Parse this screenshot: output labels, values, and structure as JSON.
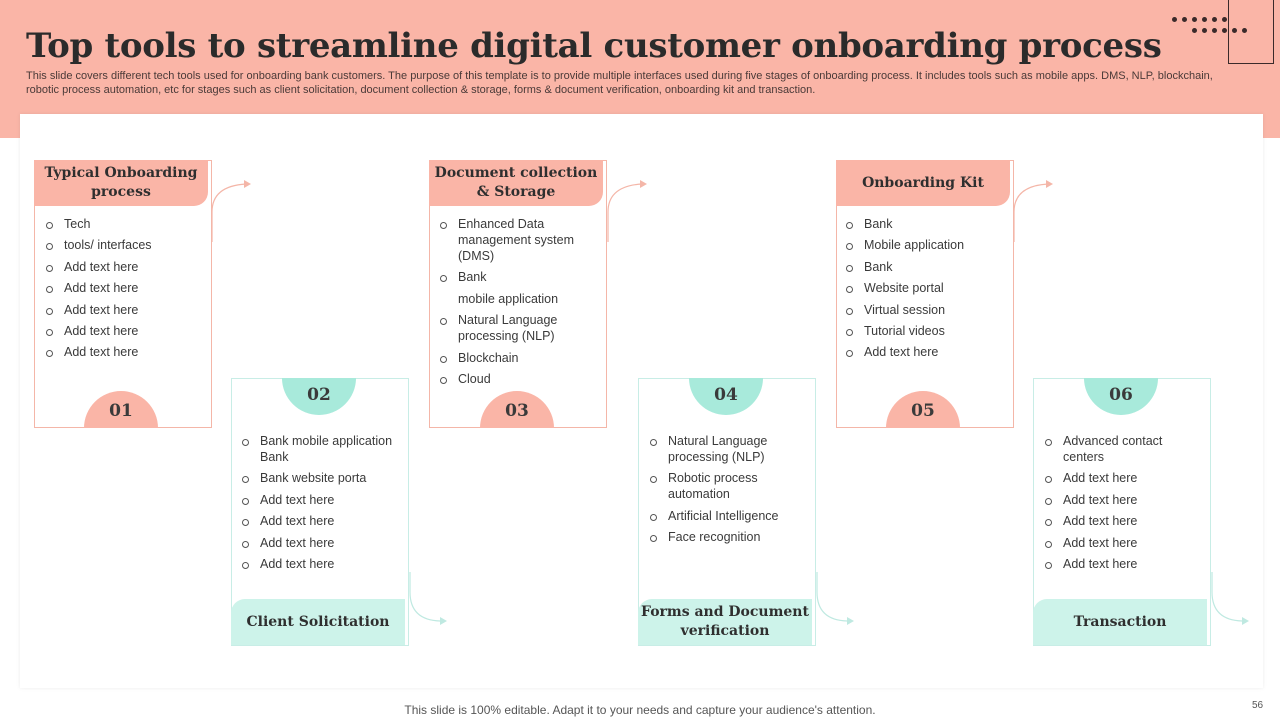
{
  "slide": {
    "title": "Top tools to streamline digital customer onboarding process",
    "subtitle": "This slide covers different tech tools used for onboarding bank customers. The purpose of this template is to provide multiple interfaces used during five stages of onboarding process. It includes tools such as mobile apps. DMS, NLP, blockchain, robotic process automation, etc for stages such as client solicitation, document collection & storage, forms & document verification, onboarding kit and transaction.",
    "footer": "This slide is 100% editable. Adapt it to your needs and capture your audience's attention.",
    "page_number": "56"
  },
  "colors": {
    "salmon": "#fab5a7",
    "mint": "#cdf3ea",
    "mint_circle": "#a8eadb"
  },
  "stages": [
    {
      "number": "01",
      "label": "Typical Onboarding process",
      "items": [
        "Tech",
        "tools/ interfaces",
        "Add text here",
        "Add text here",
        "Add text here",
        "Add text here",
        "Add text here"
      ]
    },
    {
      "number": "02",
      "label": "Client Solicitation",
      "items": [
        "Bank mobile application Bank",
        "Bank website porta",
        "Add text here",
        "Add text here",
        "Add text here",
        "Add text here"
      ]
    },
    {
      "number": "03",
      "label": "Document collection & Storage",
      "items": [
        "Enhanced Data management system (DMS)",
        "Bank",
        "mobile application",
        "Natural Language processing (NLP)",
        "Blockchain",
        "Cloud"
      ]
    },
    {
      "number": "04",
      "label": "Forms and Document verification",
      "items": [
        "Natural Language processing (NLP)",
        "Robotic process automation",
        "Artificial Intelligence",
        "Face recognition"
      ]
    },
    {
      "number": "05",
      "label": "Onboarding Kit",
      "items": [
        "Bank",
        "Mobile application",
        "Bank",
        "Website portal",
        "Virtual session",
        "Tutorial videos",
        "Add text here"
      ]
    },
    {
      "number": "06",
      "label": "Transaction",
      "items": [
        "Advanced contact centers",
        "Add text here",
        "Add text here",
        "Add text here",
        "Add text here",
        "Add text here"
      ]
    }
  ]
}
